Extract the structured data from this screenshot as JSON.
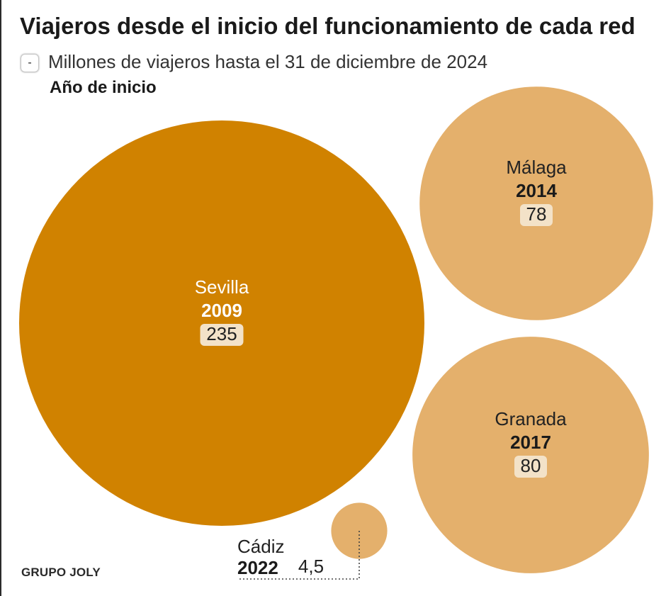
{
  "title": "Viajeros desde el inicio del funcionamiento de cada red",
  "legend": {
    "key_symbol": "-",
    "value_label": "Millones de viajeros hasta el 31 de diciembre de 2024",
    "year_label": "Año de inicio"
  },
  "footer": "GRUPO JOLY",
  "colors": {
    "dark": "#D08200",
    "light": "#E4B06C",
    "value_box": "#F3E2C8"
  },
  "chart_data": {
    "type": "bubble",
    "unit": "Millones de viajeros",
    "series": [
      {
        "name": "Sevilla",
        "year": "2009",
        "value": 235,
        "value_label": "235",
        "color": "dark"
      },
      {
        "name": "Málaga",
        "year": "2014",
        "value": 78,
        "value_label": "78",
        "color": "light"
      },
      {
        "name": "Granada",
        "year": "2017",
        "value": 80,
        "value_label": "80",
        "color": "light"
      },
      {
        "name": "Cádiz",
        "year": "2022",
        "value": 4.5,
        "value_label": "4,5",
        "color": "light"
      }
    ]
  }
}
